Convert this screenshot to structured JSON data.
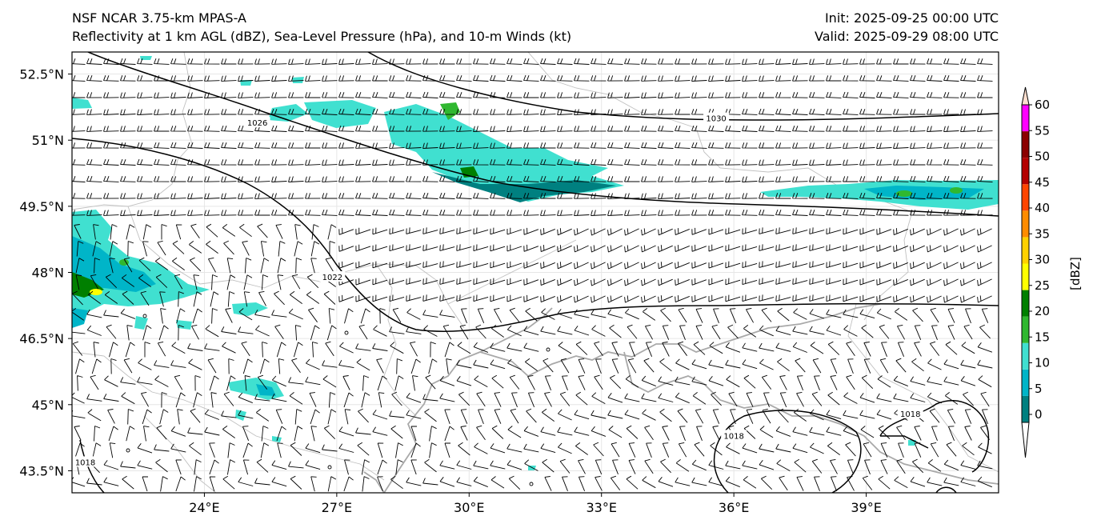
{
  "header": {
    "model": "NSF NCAR 3.75-km MPAS-A",
    "fields": "Reflectivity at 1 km AGL (dBZ), Sea-Level Pressure (hPa), and 10-m Winds (kt)",
    "init": "Init: 2025-09-25 00:00 UTC",
    "valid": "Valid: 2025-09-29 08:00 UTC"
  },
  "map": {
    "lon_range": [
      21,
      42
    ],
    "lat_range": [
      43,
      53
    ],
    "lat_ticks": [
      {
        "value": 52.5,
        "label": "52.5°N"
      },
      {
        "value": 51,
        "label": "51°N"
      },
      {
        "value": 49.5,
        "label": "49.5°N"
      },
      {
        "value": 48,
        "label": "48°N"
      },
      {
        "value": 46.5,
        "label": "46.5°N"
      },
      {
        "value": 45,
        "label": "45°N"
      },
      {
        "value": 43.5,
        "label": "43.5°N"
      }
    ],
    "lon_ticks": [
      {
        "value": 24,
        "label": "24°E"
      },
      {
        "value": 27,
        "label": "27°E"
      },
      {
        "value": 30,
        "label": "30°E"
      },
      {
        "value": 33,
        "label": "33°E"
      },
      {
        "value": 36,
        "label": "36°E"
      },
      {
        "value": 39,
        "label": "39°E"
      }
    ],
    "isobar_labels": [
      {
        "text": "1030",
        "lon": 35.6,
        "lat": 51.5
      },
      {
        "text": "1026",
        "lon": 25.2,
        "lat": 51.4
      },
      {
        "text": "1022",
        "lon": 26.9,
        "lat": 47.9
      },
      {
        "text": "1018",
        "lon": 21.3,
        "lat": 43.7
      },
      {
        "text": "1018",
        "lon": 36.0,
        "lat": 44.3
      },
      {
        "text": "1018",
        "lon": 40.0,
        "lat": 44.8
      }
    ]
  },
  "colorbar": {
    "label": "[dBZ]",
    "levels": [
      "0",
      "5",
      "10",
      "15",
      "20",
      "25",
      "30",
      "35",
      "40",
      "45",
      "50",
      "55",
      "60"
    ],
    "colors": [
      "#008080",
      "#00b5c8",
      "#40e0d0",
      "#30b830",
      "#007f00",
      "#ffff00",
      "#ffd100",
      "#ff8c00",
      "#ff4500",
      "#b40000",
      "#8b0000",
      "#ff00ff",
      "#ffe0d0"
    ]
  }
}
